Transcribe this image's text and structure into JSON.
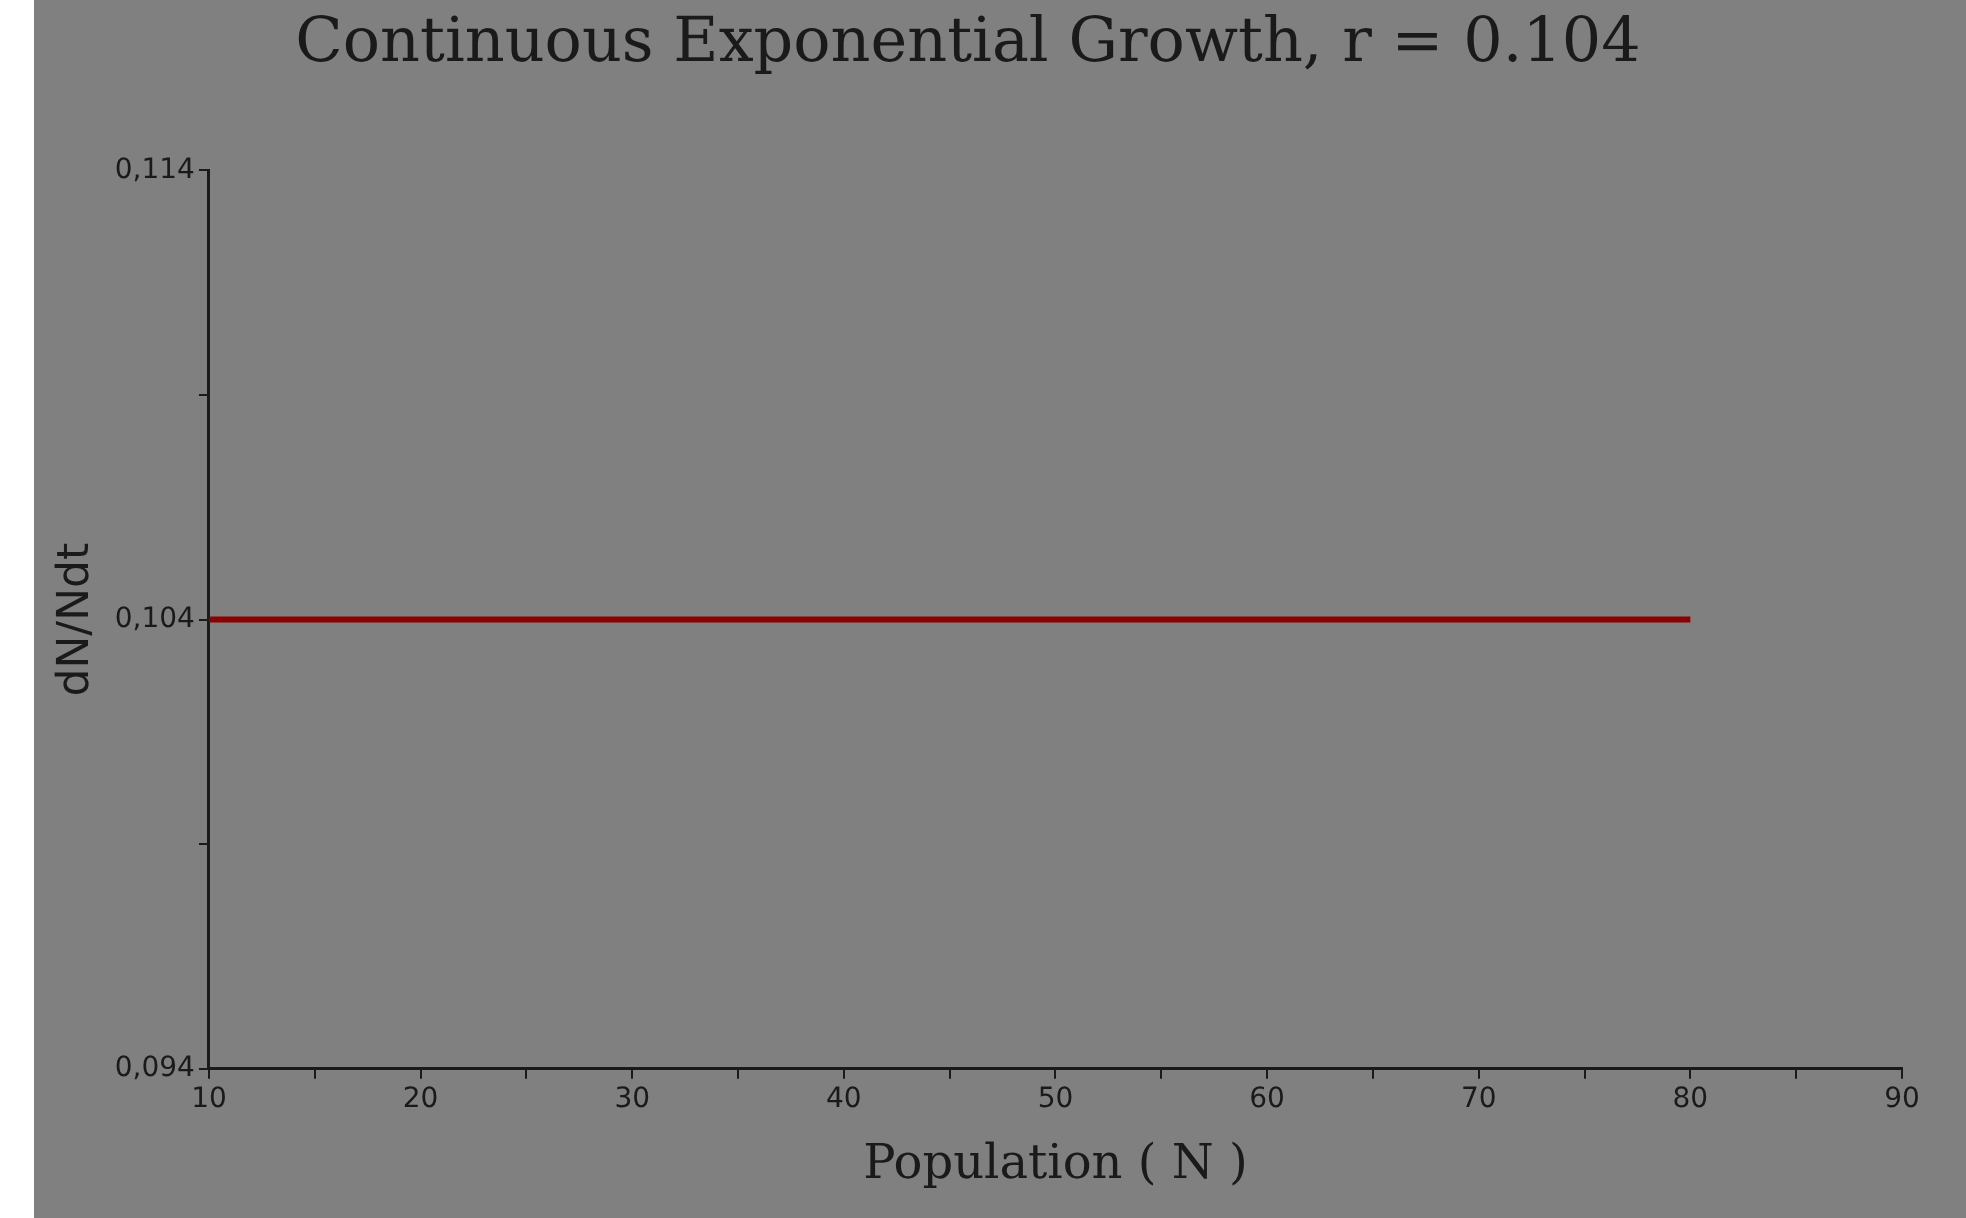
{
  "chart_data": {
    "type": "line",
    "title": "Continuous Exponential Growth, r = 0.104",
    "xlabel": "Population ( N )",
    "ylabel": "dN/Ndt",
    "x": [
      10,
      80
    ],
    "series": [
      {
        "color": "#8b0000",
        "values": [
          0.104,
          0.104
        ]
      }
    ],
    "xlim": [
      10,
      90
    ],
    "xticks": [
      10,
      {
        "value": 15,
        "label": null
      },
      20,
      {
        "value": 25,
        "label": null
      },
      30,
      {
        "value": 35,
        "label": null
      },
      40,
      {
        "value": 45,
        "label": null
      },
      50,
      {
        "value": 55,
        "label": null
      },
      60,
      {
        "value": 65,
        "label": null
      },
      70,
      {
        "value": 75,
        "label": null
      },
      80,
      {
        "value": 85,
        "label": null
      },
      90
    ],
    "ylim": [
      0.094,
      0.114
    ],
    "yticks": [
      {
        "value": 0.094,
        "label": "0,094"
      },
      {
        "value": 0.099,
        "label": null
      },
      {
        "value": 0.104,
        "label": "0,104"
      },
      {
        "value": 0.109,
        "label": null
      },
      {
        "value": 0.114,
        "label": "0,114"
      }
    ],
    "grid": false,
    "legend": false,
    "marker": "none",
    "line_style": "solid"
  }
}
